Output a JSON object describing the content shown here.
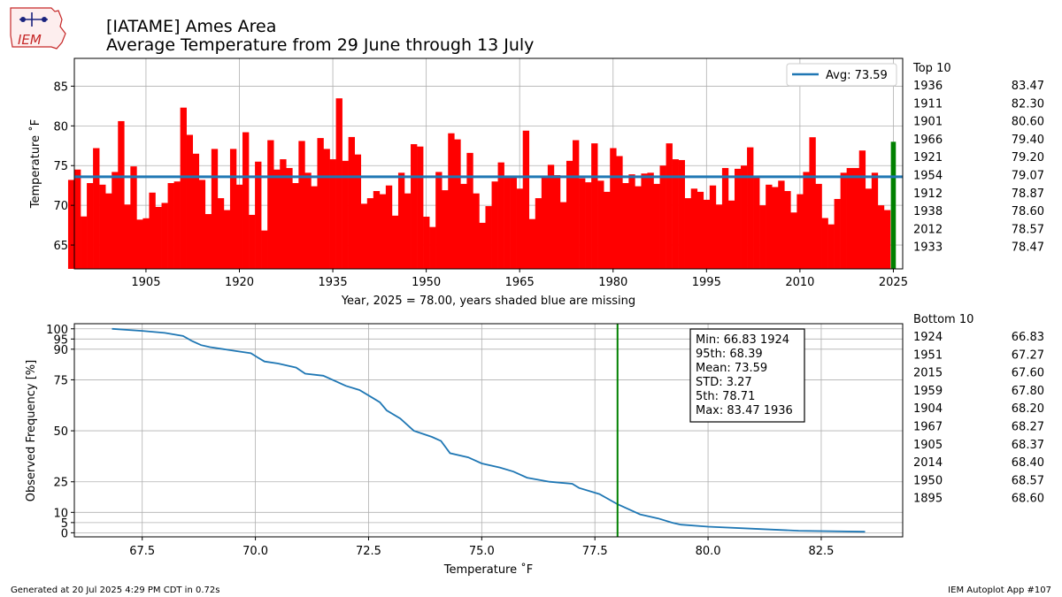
{
  "header": {
    "logo_text": "IEM",
    "title_line1": "[IATAME] Ames Area",
    "title_line2": "Average Temperature from 29 June through 13 July"
  },
  "footer": {
    "left": "Generated at 20 Jul 2025 4:29 PM CDT in 0.72s",
    "right": "IEM Autoplot App #107"
  },
  "colors": {
    "bar": "#ff0000",
    "highlight_bar": "#008000",
    "avg_line": "#1f77b4",
    "cdf_line": "#1f77b4",
    "current_line": "#008000",
    "grid": "#b0b0b0"
  },
  "top_table": {
    "title": "Top 10",
    "rows": [
      {
        "year": "1936",
        "value": "83.47"
      },
      {
        "year": "1911",
        "value": "82.30"
      },
      {
        "year": "1901",
        "value": "80.60"
      },
      {
        "year": "1966",
        "value": "79.40"
      },
      {
        "year": "1921",
        "value": "79.20"
      },
      {
        "year": "1954",
        "value": "79.07"
      },
      {
        "year": "1912",
        "value": "78.87"
      },
      {
        "year": "1938",
        "value": "78.60"
      },
      {
        "year": "2012",
        "value": "78.57"
      },
      {
        "year": "1933",
        "value": "78.47"
      }
    ]
  },
  "bottom_table": {
    "title": "Bottom 10",
    "rows": [
      {
        "year": "1924",
        "value": "66.83"
      },
      {
        "year": "1951",
        "value": "67.27"
      },
      {
        "year": "2015",
        "value": "67.60"
      },
      {
        "year": "1959",
        "value": "67.80"
      },
      {
        "year": "1904",
        "value": "68.20"
      },
      {
        "year": "1967",
        "value": "68.27"
      },
      {
        "year": "1905",
        "value": "68.37"
      },
      {
        "year": "2014",
        "value": "68.40"
      },
      {
        "year": "1950",
        "value": "68.57"
      },
      {
        "year": "1895",
        "value": "68.60"
      }
    ]
  },
  "chart_data": [
    {
      "type": "bar",
      "xlabel": "Year, 2025 = 78.00, years shaded blue are missing",
      "ylabel": "Temperature ˚F",
      "xlim": [
        1893.5,
        2026.5
      ],
      "ylim": [
        62,
        88.5
      ],
      "xticks": [
        1905,
        1920,
        1935,
        1950,
        1965,
        1980,
        1995,
        2010,
        2025
      ],
      "yticks": [
        65,
        70,
        75,
        80,
        85
      ],
      "grid": true,
      "legend": {
        "label": "Avg: 73.59",
        "position": "top-right"
      },
      "average": 73.59,
      "highlight_year": 2025,
      "years": [
        1893,
        1894,
        1895,
        1896,
        1897,
        1898,
        1899,
        1900,
        1901,
        1902,
        1903,
        1904,
        1905,
        1906,
        1907,
        1908,
        1909,
        1910,
        1911,
        1912,
        1913,
        1914,
        1915,
        1916,
        1917,
        1918,
        1919,
        1920,
        1921,
        1922,
        1923,
        1924,
        1925,
        1926,
        1927,
        1928,
        1929,
        1930,
        1931,
        1932,
        1933,
        1934,
        1935,
        1936,
        1937,
        1938,
        1939,
        1940,
        1941,
        1942,
        1943,
        1944,
        1945,
        1946,
        1947,
        1948,
        1949,
        1950,
        1951,
        1952,
        1953,
        1954,
        1955,
        1956,
        1957,
        1958,
        1959,
        1960,
        1961,
        1962,
        1963,
        1964,
        1965,
        1966,
        1967,
        1968,
        1969,
        1970,
        1971,
        1972,
        1973,
        1974,
        1975,
        1976,
        1977,
        1978,
        1979,
        1980,
        1981,
        1982,
        1983,
        1984,
        1985,
        1986,
        1987,
        1988,
        1989,
        1990,
        1991,
        1992,
        1993,
        1994,
        1995,
        1996,
        1997,
        1998,
        1999,
        2000,
        2001,
        2002,
        2003,
        2004,
        2005,
        2006,
        2007,
        2008,
        2009,
        2010,
        2011,
        2012,
        2013,
        2014,
        2015,
        2016,
        2017,
        2018,
        2019,
        2020,
        2021,
        2022,
        2023,
        2024,
        2025
      ],
      "values": [
        73.2,
        74.5,
        68.6,
        72.8,
        77.2,
        72.6,
        71.5,
        74.2,
        80.6,
        70.1,
        74.9,
        68.2,
        68.37,
        71.6,
        69.8,
        70.3,
        72.8,
        73.0,
        82.3,
        78.87,
        76.5,
        73.2,
        68.9,
        77.1,
        70.9,
        69.4,
        77.1,
        72.6,
        79.2,
        68.8,
        75.5,
        66.83,
        78.2,
        74.5,
        75.8,
        74.7,
        72.8,
        78.1,
        74.1,
        72.4,
        78.47,
        77.1,
        75.8,
        83.47,
        75.6,
        78.6,
        76.4,
        70.2,
        70.9,
        71.8,
        71.4,
        72.5,
        68.7,
        74.1,
        71.5,
        77.7,
        77.4,
        68.57,
        67.27,
        74.2,
        71.9,
        79.07,
        78.3,
        72.7,
        76.6,
        71.5,
        67.8,
        69.9,
        73.0,
        75.4,
        73.5,
        73.6,
        72.1,
        79.4,
        68.27,
        70.9,
        73.5,
        75.1,
        73.8,
        70.4,
        75.6,
        78.2,
        73.4,
        72.9,
        77.8,
        73.1,
        71.7,
        77.2,
        76.2,
        72.8,
        73.9,
        72.4,
        74.0,
        74.1,
        72.7,
        75.0,
        77.8,
        75.8,
        75.7,
        70.9,
        72.1,
        71.7,
        70.7,
        72.5,
        70.1,
        74.7,
        70.6,
        74.6,
        75.0,
        77.3,
        73.6,
        70.0,
        72.6,
        72.3,
        73.1,
        71.8,
        69.1,
        71.4,
        74.2,
        78.57,
        72.7,
        68.4,
        67.6,
        70.8,
        74.1,
        74.7,
        74.7,
        76.9,
        72.1,
        74.1,
        70.0,
        69.4,
        78.0
      ]
    },
    {
      "type": "line",
      "xlabel": "Temperature ˚F",
      "ylabel": "Observed Frequency [%]",
      "xlim": [
        66.0,
        84.3
      ],
      "ylim": [
        -2,
        102.5
      ],
      "xticks": [
        67.5,
        70.0,
        72.5,
        75.0,
        77.5,
        80.0,
        82.5
      ],
      "yticks": [
        0,
        5,
        10,
        25,
        50,
        75,
        90,
        95,
        100
      ],
      "grid": true,
      "current_value": 78.0,
      "stats_box": [
        "Min: 66.83 1924",
        "95th: 68.39",
        "Mean: 73.59",
        "STD: 3.27",
        "5th: 78.71",
        "Max: 83.47 1936"
      ],
      "series": [
        {
          "x": [
            66.83,
            67.5,
            68.0,
            68.4,
            68.6,
            68.8,
            69.0,
            69.3,
            69.6,
            69.9,
            70.05,
            70.2,
            70.5,
            70.9,
            71.1,
            71.5,
            71.8,
            72.0,
            72.3,
            72.6,
            72.75,
            72.9,
            73.2,
            73.5,
            73.9,
            74.1,
            74.3,
            74.7,
            75.0,
            75.4,
            75.7,
            76.0,
            76.5,
            77.0,
            77.15,
            77.6,
            78.0,
            78.2,
            78.5,
            78.9,
            79.2,
            79.4,
            80.0,
            81.0,
            82.0,
            83.47
          ],
          "y": [
            100,
            99,
            98,
            96.5,
            94,
            92,
            91,
            90,
            89,
            88,
            86,
            84,
            83,
            81,
            78,
            77,
            74,
            72,
            70,
            66,
            64,
            60,
            56,
            50,
            47,
            45,
            39,
            37,
            34,
            32,
            30,
            27,
            25,
            24,
            22,
            19,
            14,
            12,
            9,
            7,
            5,
            4,
            3,
            2,
            1,
            0.5
          ]
        }
      ]
    }
  ]
}
